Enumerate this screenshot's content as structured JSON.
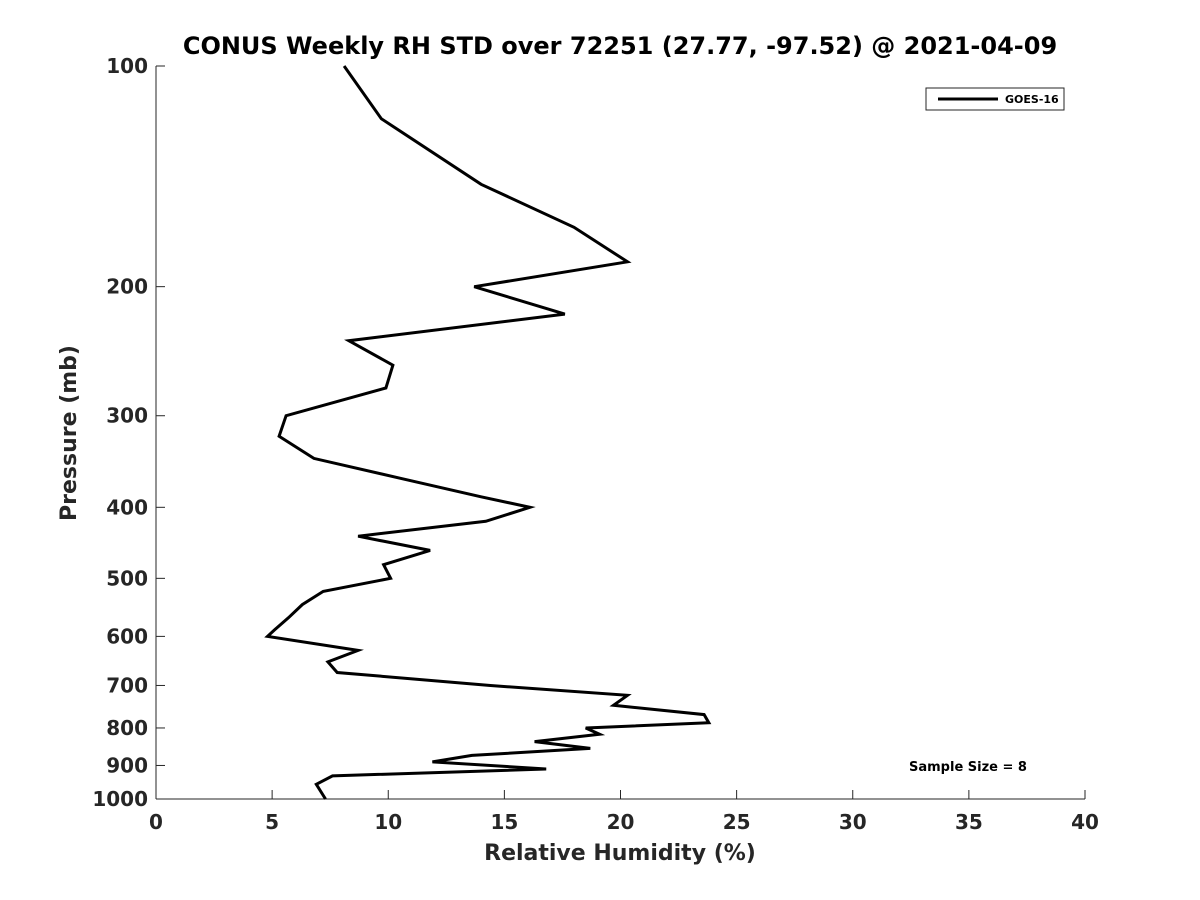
{
  "chart_data": {
    "type": "line",
    "title": "CONUS Weekly RH STD over 72251 (27.77, -97.52) @ 2021-04-09",
    "xlabel": "Relative Humidity (%)",
    "ylabel": "Pressure (mb)",
    "xlim": [
      0,
      40
    ],
    "ylim": [
      100,
      1000
    ],
    "y_scale": "log",
    "y_reversed": true,
    "x_ticks": [
      "0",
      "5",
      "10",
      "15",
      "20",
      "25",
      "30",
      "35",
      "40"
    ],
    "y_ticks": [
      "100",
      "200",
      "300",
      "400",
      "500",
      "600",
      "700",
      "800",
      "900",
      "1000"
    ],
    "grid": false,
    "legend": {
      "placement": "top-right",
      "entries": [
        "GOES-16"
      ]
    },
    "annotation": "Sample Size = 8",
    "series": [
      {
        "name": "GOES-16",
        "color": "#000000",
        "points": [
          [
            8.1,
            100
          ],
          [
            9.7,
            118
          ],
          [
            14.0,
            145
          ],
          [
            18.0,
            166
          ],
          [
            20.3,
            185
          ],
          [
            13.7,
            200
          ],
          [
            17.6,
            218
          ],
          [
            8.3,
            237
          ],
          [
            10.2,
            256
          ],
          [
            9.9,
            275
          ],
          [
            5.6,
            300
          ],
          [
            5.3,
            320
          ],
          [
            6.8,
            343
          ],
          [
            10.5,
            365
          ],
          [
            14.0,
            387
          ],
          [
            16.1,
            400
          ],
          [
            14.2,
            418
          ],
          [
            8.7,
            438
          ],
          [
            11.8,
            458
          ],
          [
            9.8,
            479
          ],
          [
            10.1,
            500
          ],
          [
            7.2,
            521
          ],
          [
            6.3,
            543
          ],
          [
            5.7,
            566
          ],
          [
            5.1,
            588
          ],
          [
            4.8,
            600
          ],
          [
            8.7,
            627
          ],
          [
            7.4,
            650
          ],
          [
            7.8,
            672
          ],
          [
            14.4,
            700
          ],
          [
            20.3,
            722
          ],
          [
            19.7,
            745
          ],
          [
            23.6,
            767
          ],
          [
            23.8,
            787
          ],
          [
            18.5,
            800
          ],
          [
            19.1,
            816
          ],
          [
            16.3,
            835
          ],
          [
            18.7,
            853
          ],
          [
            13.6,
            872
          ],
          [
            11.9,
            890
          ],
          [
            16.8,
            910
          ],
          [
            7.6,
            930
          ],
          [
            6.9,
            955
          ],
          [
            7.3,
            1000
          ]
        ]
      }
    ]
  }
}
